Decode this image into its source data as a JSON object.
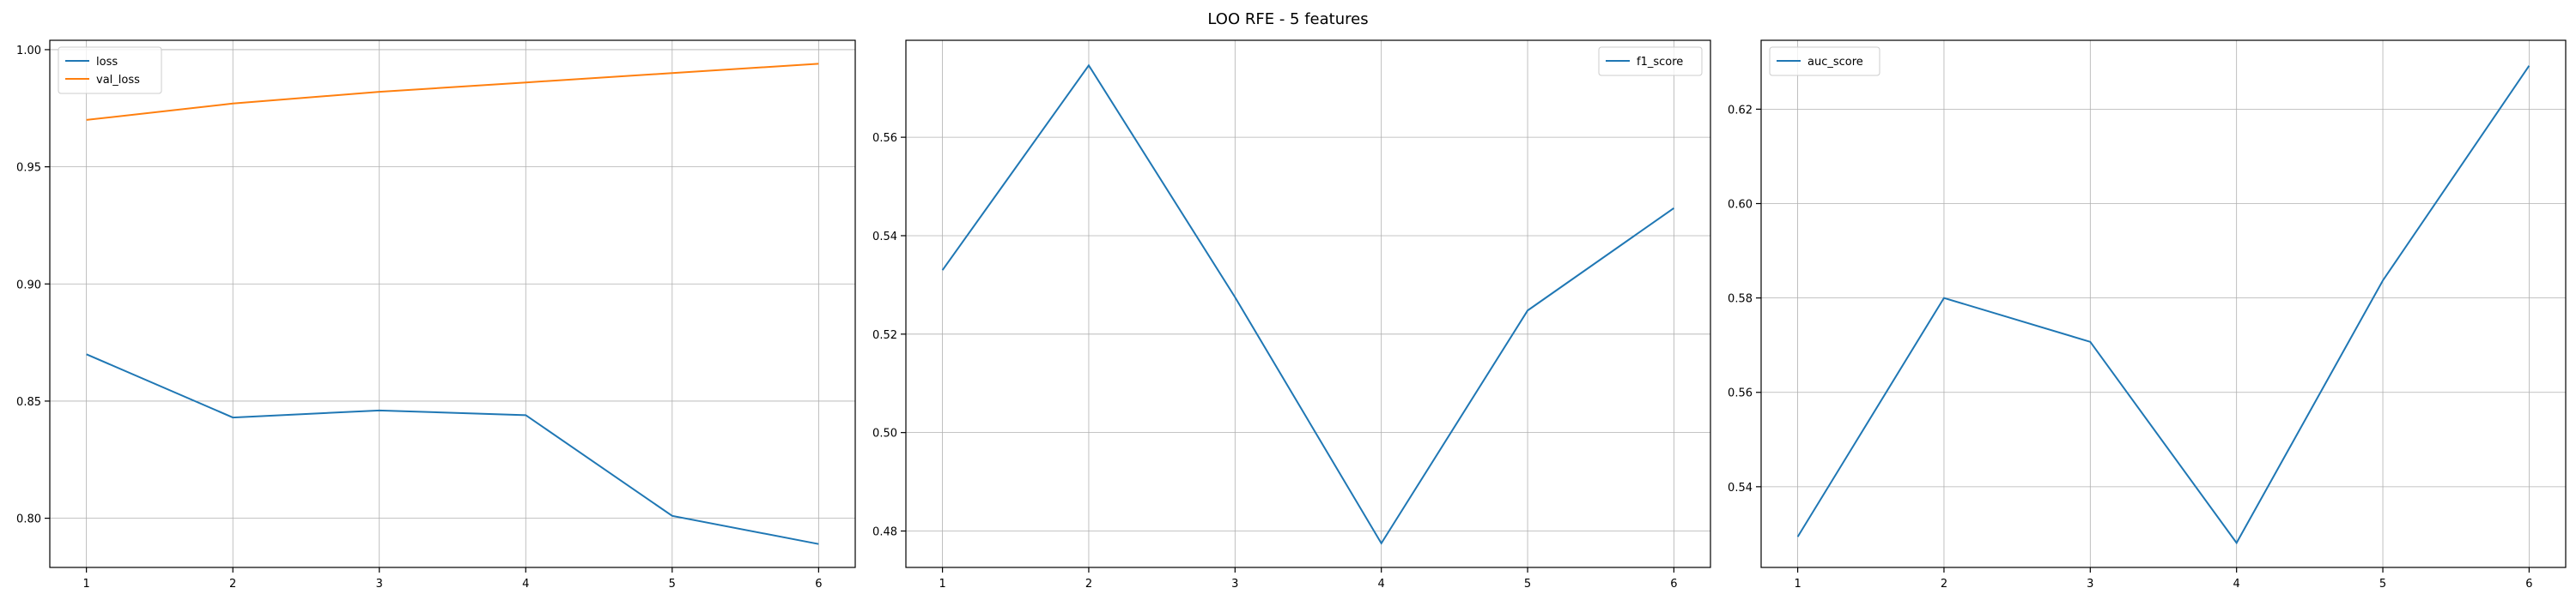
{
  "figure": {
    "suptitle": "LOO RFE - 5 features"
  },
  "chart_data": [
    {
      "type": "line",
      "title": "",
      "xlabel": "",
      "ylabel": "",
      "x": [
        1,
        2,
        3,
        4,
        5,
        6
      ],
      "xlim": [
        0.75,
        6.25
      ],
      "ylim": [
        0.779,
        1.004
      ],
      "xticks": [
        1,
        2,
        3,
        4,
        5,
        6
      ],
      "yticks": [
        0.8,
        0.85,
        0.9,
        0.95,
        1.0
      ],
      "ytick_labels": [
        "0.80",
        "0.85",
        "0.90",
        "0.95",
        "1.00"
      ],
      "grid": true,
      "legend": "top-left",
      "series": [
        {
          "name": "loss",
          "color": "#1f77b4",
          "values": [
            0.87,
            0.843,
            0.846,
            0.844,
            0.801,
            0.789
          ]
        },
        {
          "name": "val_loss",
          "color": "#ff7f0e",
          "values": [
            0.97,
            0.977,
            0.982,
            0.986,
            0.99,
            0.994
          ]
        }
      ]
    },
    {
      "type": "line",
      "title": "",
      "xlabel": "",
      "ylabel": "",
      "x": [
        1,
        2,
        3,
        4,
        5,
        6
      ],
      "xlim": [
        0.75,
        6.25
      ],
      "ylim": [
        0.4726,
        0.5797
      ],
      "xticks": [
        1,
        2,
        3,
        4,
        5,
        6
      ],
      "yticks": [
        0.48,
        0.5,
        0.52,
        0.54,
        0.56
      ],
      "ytick_labels": [
        "0.48",
        "0.50",
        "0.52",
        "0.54",
        "0.56"
      ],
      "grid": true,
      "legend": "top-right",
      "series": [
        {
          "name": "f1_score",
          "color": "#1f77b4",
          "values": [
            0.533,
            0.5746,
            0.5275,
            0.4775,
            0.5248,
            0.5456
          ]
        }
      ]
    },
    {
      "type": "line",
      "title": "",
      "xlabel": "",
      "ylabel": "",
      "x": [
        1,
        2,
        3,
        4,
        5,
        6
      ],
      "xlim": [
        0.75,
        6.25
      ],
      "ylim": [
        0.5229,
        0.6346
      ],
      "xticks": [
        1,
        2,
        3,
        4,
        5,
        6
      ],
      "yticks": [
        0.54,
        0.56,
        0.58,
        0.6,
        0.62
      ],
      "ytick_labels": [
        "0.54",
        "0.56",
        "0.58",
        "0.60",
        "0.62"
      ],
      "grid": true,
      "legend": "top-left",
      "series": [
        {
          "name": "auc_score",
          "color": "#1f77b4",
          "values": [
            0.5294,
            0.58,
            0.5707,
            0.5281,
            0.5837,
            0.6292
          ]
        }
      ]
    }
  ]
}
